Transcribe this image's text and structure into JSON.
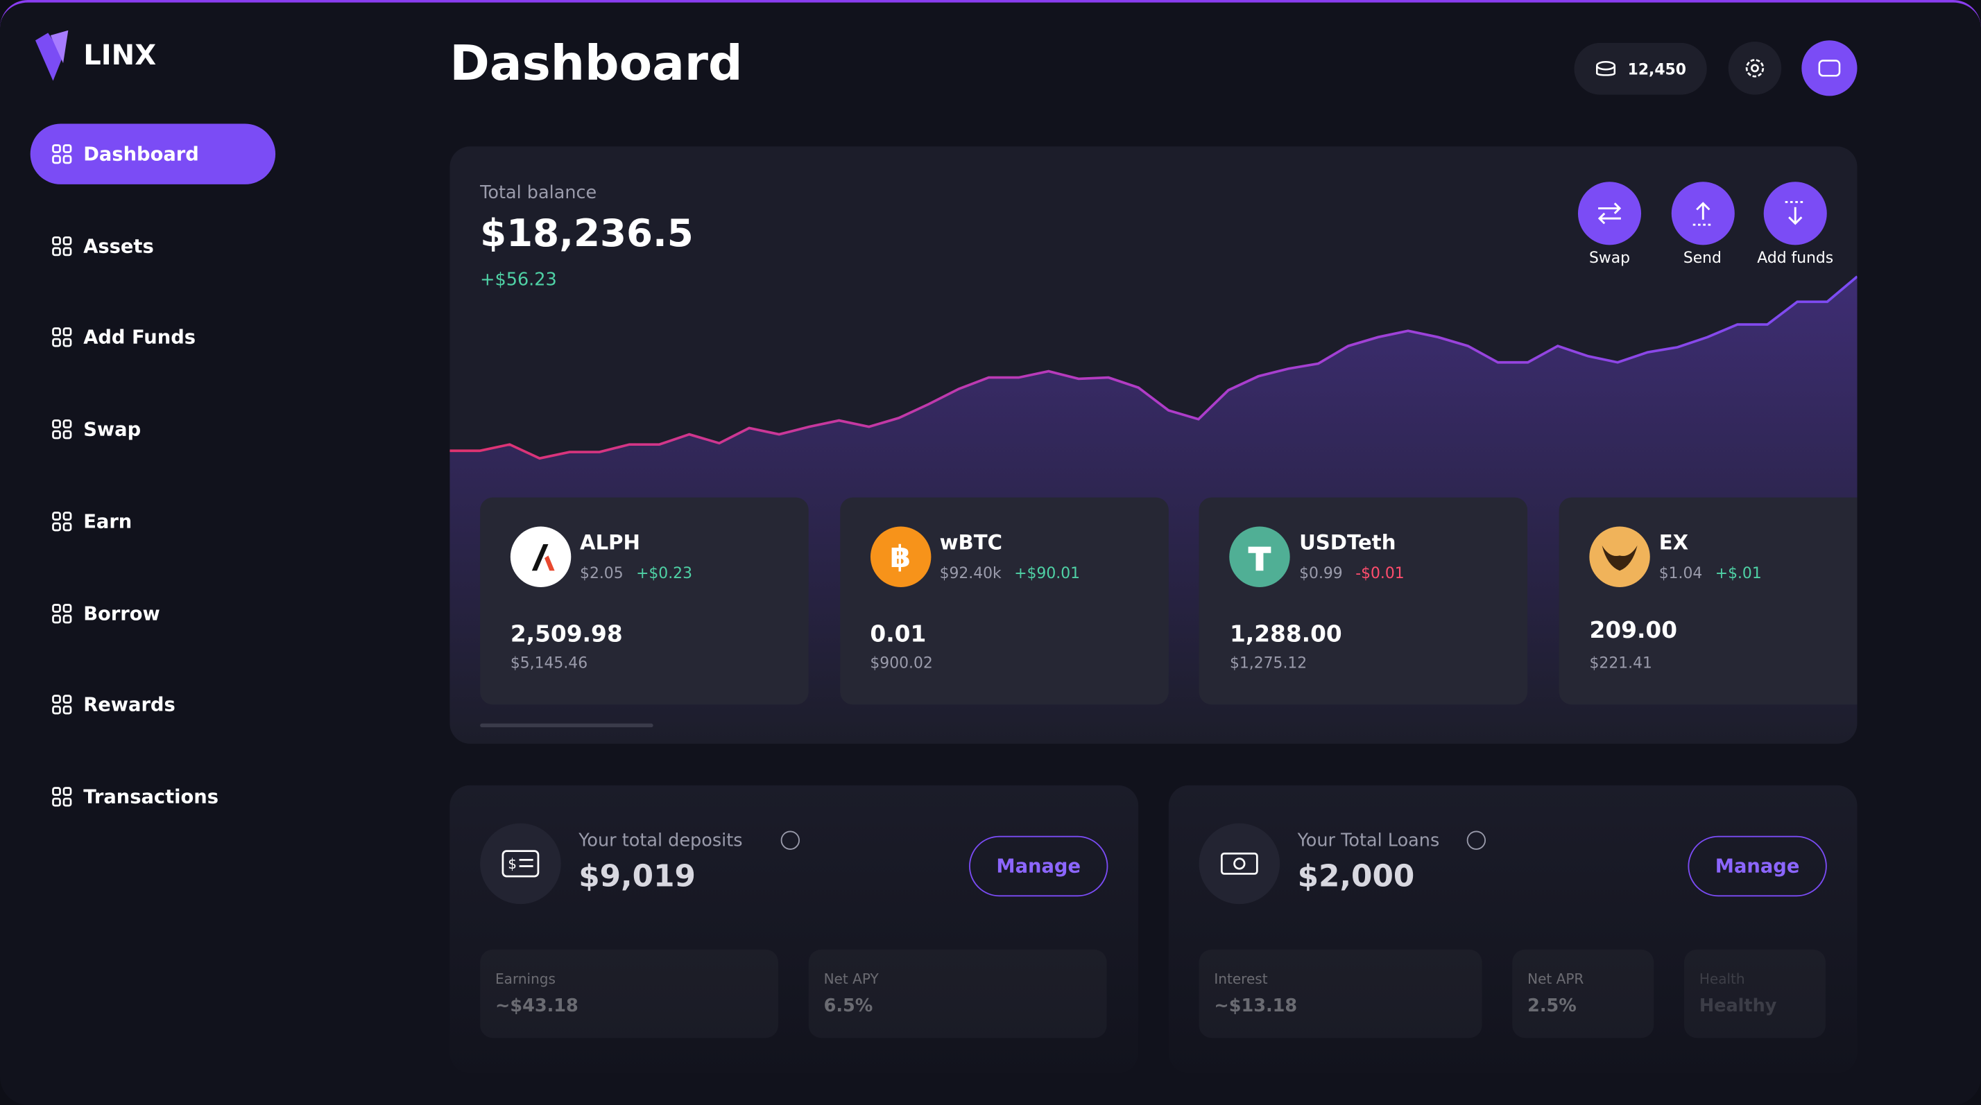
{
  "logo": "LINX",
  "nav": [
    "Dashboard",
    "Assets",
    "Add Funds",
    "Swap",
    "Earn",
    "Borrow",
    "Rewards",
    "Transactions"
  ],
  "header": {
    "title": "Dashboard",
    "points": "12,450"
  },
  "balance": {
    "label": "Total balance",
    "amount": "$18,236.5",
    "change": "+$56.23",
    "actions": [
      "Swap",
      "Send",
      "Add funds"
    ],
    "chart": {
      "type": "line",
      "values": [
        25,
        25,
        30,
        19,
        24,
        24,
        30,
        30,
        38,
        31,
        43,
        38,
        44,
        49,
        44,
        51,
        62,
        74,
        83,
        83,
        88,
        82,
        83,
        75,
        57,
        50,
        73,
        84,
        90,
        94,
        108,
        115,
        120,
        115,
        108,
        95,
        95,
        108,
        100,
        95,
        103,
        107,
        115,
        125,
        125,
        143,
        143,
        163
      ]
    }
  },
  "assets": [
    {
      "symbol": "ALPH",
      "price": "$2.05",
      "change": "+$0.23",
      "amount": "2,509.98",
      "value": "$5,145.46"
    },
    {
      "symbol": "wBTC",
      "price": "$92.40k",
      "change": "+$90.01",
      "amount": "0.01",
      "value": "$900.02"
    },
    {
      "symbol": "USDTeth",
      "price": "$0.99",
      "change": "-$0.01",
      "amount": "1,288.00",
      "value": "$1,275.12"
    },
    {
      "symbol": "EX",
      "price": "$1.04",
      "change": "+$.01",
      "amount": "209.00",
      "value": "$221.41"
    }
  ],
  "deposits": {
    "label": "Your total deposits",
    "amount": "$9,019",
    "button": "Manage",
    "stats": [
      {
        "label": "Earnings",
        "value": "~$43.18"
      },
      {
        "label": "Net APY",
        "value": "6.5%"
      }
    ]
  },
  "loans": {
    "label": "Your Total Loans",
    "amount": "$2,000",
    "button": "Manage",
    "stats": [
      {
        "label": "Interest",
        "value": "~$13.18"
      },
      {
        "label": "Net APR",
        "value": "2.5%"
      },
      {
        "label": "Health",
        "value": "Healthy"
      }
    ]
  }
}
